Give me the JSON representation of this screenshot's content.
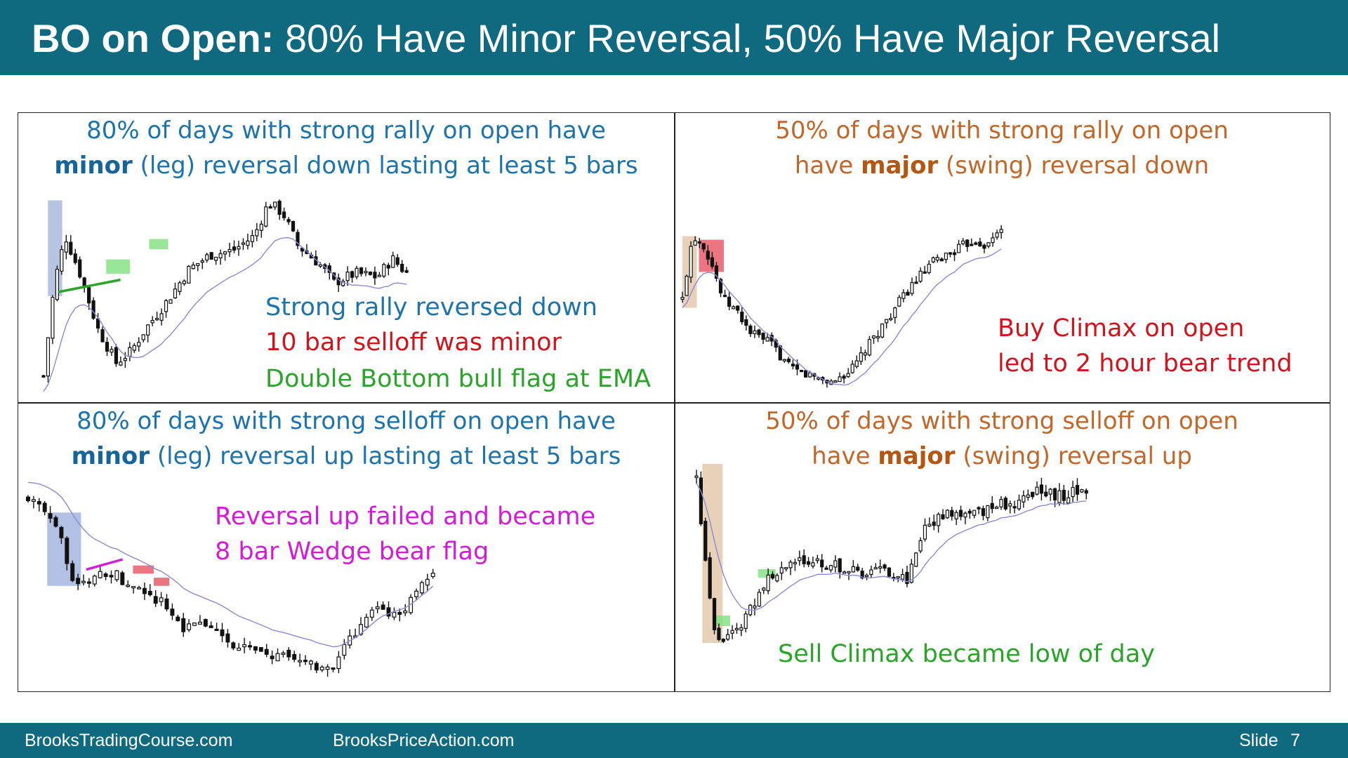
{
  "slide": {
    "title_bold": "BO on Open:",
    "title_rest": " 80% Have Minor Reversal, 50% Have Major Reversal",
    "panels": {
      "top_left": {
        "heading_line1": "80% of days with strong rally on open have",
        "heading_bold": "minor",
        "heading_line2_rest": " (leg) reversal down lasting at least 5 bars",
        "note1": "Strong rally reversed down",
        "note2": "10 bar selloff was minor",
        "note3": "Double Bottom bull flag at EMA"
      },
      "top_right": {
        "heading_line1": "50% of days with strong rally on open",
        "heading_pre": "have ",
        "heading_bold": "major",
        "heading_line2_rest": " (swing) reversal down",
        "note1": "Buy Climax on open",
        "note2": "led to 2 hour bear trend"
      },
      "bottom_left": {
        "heading_line1": "80% of days with strong selloff on open have",
        "heading_bold": "minor",
        "heading_line2_rest": " (leg) reversal up lasting at least 5 bars",
        "note1": "Reversal up failed and became",
        "note2": "8 bar Wedge bear flag"
      },
      "bottom_right": {
        "heading_line1": "50% of days with strong selloff on open",
        "heading_pre": "have ",
        "heading_bold": "major",
        "heading_line2_rest": " (swing) reversal up",
        "note1": "Sell Climax became low of day"
      }
    },
    "footer": {
      "left": "BrooksTradingCourse.com",
      "middle": "BrooksPriceAction.com",
      "slide_label": "Slide",
      "slide_number": "7"
    }
  },
  "colors": {
    "brand": "#0f6a80",
    "heading_blue": "#1d74ad",
    "heading_orange": "#c1672a",
    "note_red": "#d0141e",
    "note_green": "#2aa52a",
    "note_magenta": "#d11ed6",
    "ema_line": "#8a8ad6"
  },
  "price_paths": {
    "top_left": [
      [
        0,
        0.05
      ],
      [
        3,
        0.55
      ],
      [
        6,
        0.8
      ],
      [
        10,
        0.6
      ],
      [
        15,
        0.3
      ],
      [
        20,
        0.12
      ],
      [
        24,
        0.18
      ],
      [
        28,
        0.3
      ],
      [
        34,
        0.45
      ],
      [
        40,
        0.62
      ],
      [
        46,
        0.7
      ],
      [
        52,
        0.72
      ],
      [
        58,
        0.8
      ],
      [
        62,
        0.98
      ],
      [
        66,
        0.92
      ],
      [
        70,
        0.75
      ],
      [
        76,
        0.65
      ],
      [
        80,
        0.55
      ],
      [
        86,
        0.6
      ],
      [
        92,
        0.58
      ],
      [
        96,
        0.68
      ],
      [
        100,
        0.6
      ]
    ],
    "top_right": [
      [
        0,
        0.55
      ],
      [
        3,
        0.95
      ],
      [
        6,
        0.9
      ],
      [
        9,
        0.75
      ],
      [
        12,
        0.55
      ],
      [
        16,
        0.48
      ],
      [
        20,
        0.35
      ],
      [
        26,
        0.28
      ],
      [
        32,
        0.12
      ],
      [
        38,
        0.08
      ],
      [
        44,
        0.04
      ],
      [
        50,
        0.12
      ],
      [
        56,
        0.3
      ],
      [
        62,
        0.48
      ],
      [
        68,
        0.65
      ],
      [
        74,
        0.78
      ],
      [
        80,
        0.85
      ],
      [
        86,
        0.92
      ],
      [
        90,
        0.88
      ],
      [
        94,
        1.0
      ]
    ],
    "bottom_left": [
      [
        0,
        0.95
      ],
      [
        4,
        0.85
      ],
      [
        8,
        0.7
      ],
      [
        11,
        0.45
      ],
      [
        15,
        0.5
      ],
      [
        19,
        0.55
      ],
      [
        22,
        0.5
      ],
      [
        25,
        0.45
      ],
      [
        30,
        0.4
      ],
      [
        36,
        0.25
      ],
      [
        42,
        0.25
      ],
      [
        48,
        0.15
      ],
      [
        54,
        0.1
      ],
      [
        60,
        0.08
      ],
      [
        66,
        0.05
      ],
      [
        70,
        0.0
      ],
      [
        74,
        0.15
      ],
      [
        78,
        0.3
      ],
      [
        82,
        0.35
      ],
      [
        86,
        0.28
      ],
      [
        90,
        0.45
      ],
      [
        94,
        0.55
      ]
    ],
    "bottom_right": [
      [
        0,
        0.98
      ],
      [
        2,
        0.6
      ],
      [
        4,
        0.25
      ],
      [
        6,
        0.1
      ],
      [
        9,
        0.15
      ],
      [
        14,
        0.3
      ],
      [
        18,
        0.45
      ],
      [
        24,
        0.52
      ],
      [
        30,
        0.55
      ],
      [
        36,
        0.52
      ],
      [
        42,
        0.48
      ],
      [
        48,
        0.5
      ],
      [
        54,
        0.45
      ],
      [
        58,
        0.7
      ],
      [
        64,
        0.8
      ],
      [
        70,
        0.78
      ],
      [
        76,
        0.82
      ],
      [
        82,
        0.85
      ],
      [
        88,
        0.9
      ],
      [
        94,
        0.88
      ],
      [
        100,
        0.92
      ]
    ]
  }
}
